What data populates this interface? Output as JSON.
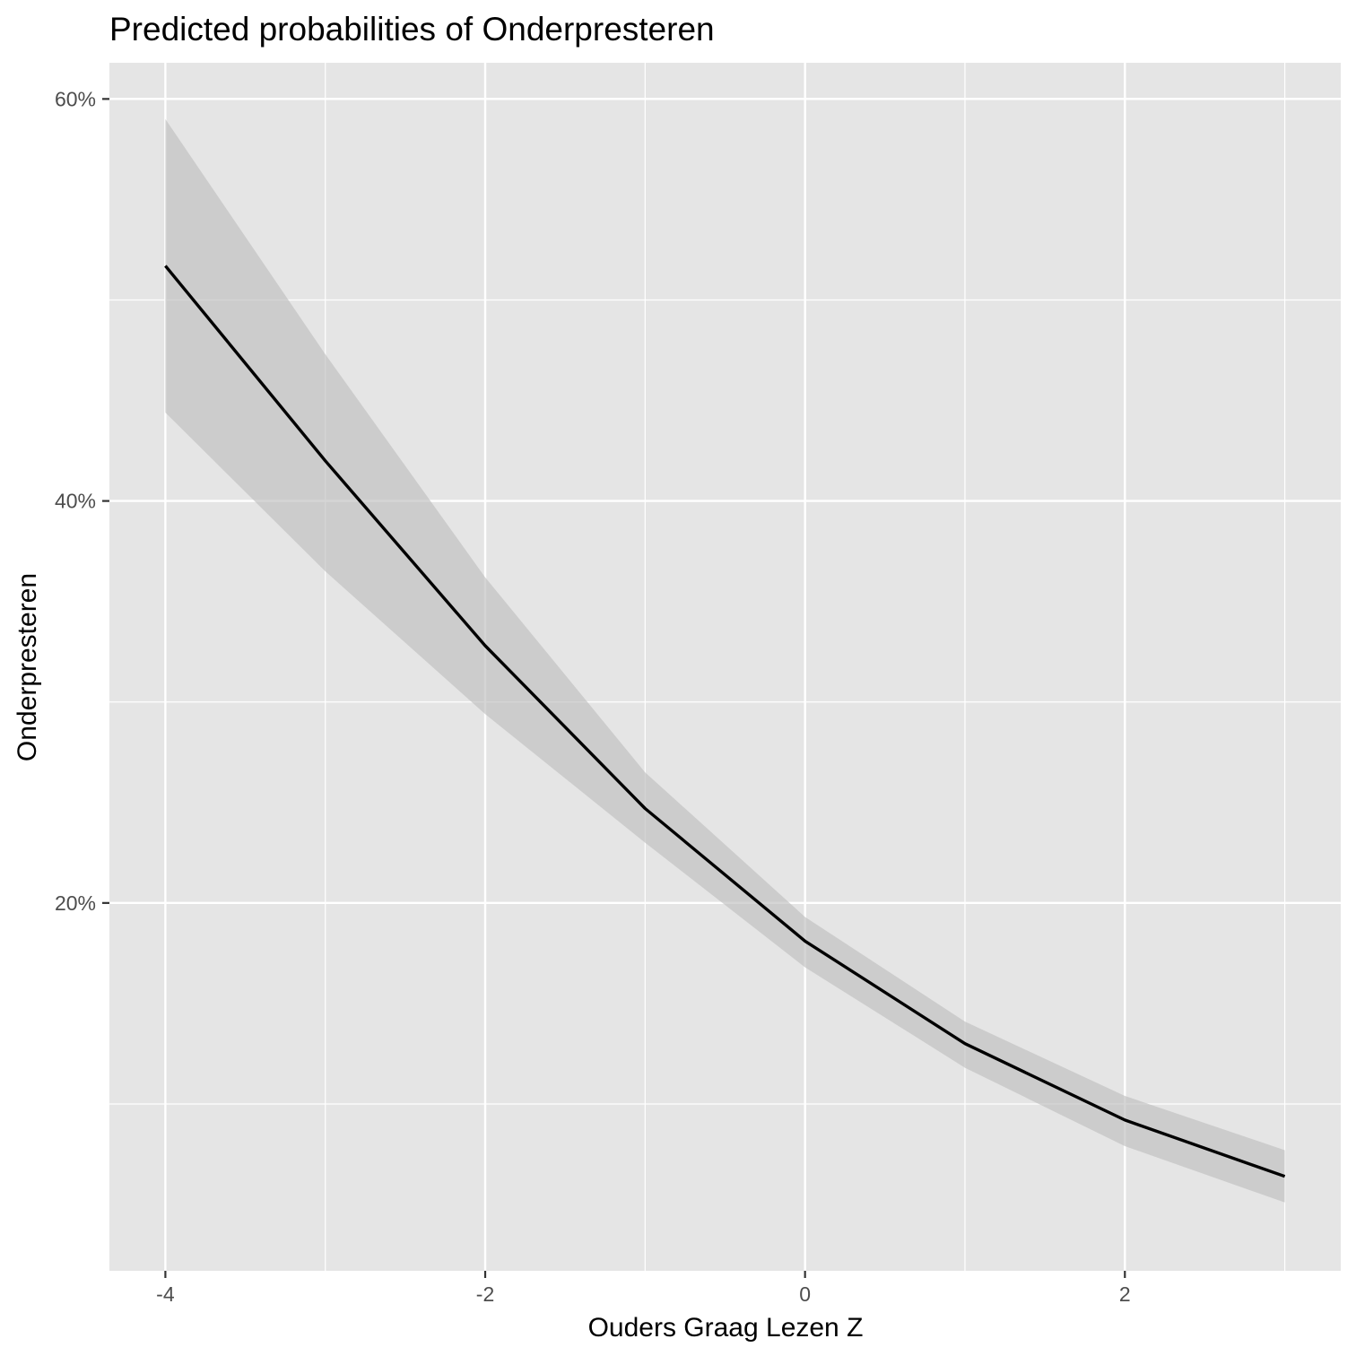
{
  "chart_data": {
    "type": "line",
    "title": "Predicted probabilities of Onderpresteren",
    "xlabel": "Ouders Graag Lezen Z",
    "ylabel": "Onderpresteren",
    "x": [
      -4,
      -3,
      -2,
      -1,
      0,
      1,
      2,
      3
    ],
    "series": [
      {
        "values": [
          0.517,
          0.42,
          0.328,
          0.247,
          0.181,
          0.13,
          0.092,
          0.064
        ],
        "ci_upper": [
          0.59,
          0.473,
          0.362,
          0.265,
          0.193,
          0.141,
          0.104,
          0.077
        ],
        "ci_lower": [
          0.444,
          0.365,
          0.294,
          0.23,
          0.168,
          0.118,
          0.079,
          0.051
        ]
      }
    ],
    "x_ticks": [
      -4,
      -2,
      0,
      2
    ],
    "x_tick_labels": [
      "-4",
      "-2",
      "0",
      "2"
    ],
    "y_ticks": [
      0.2,
      0.4,
      0.6
    ],
    "y_tick_labels": [
      "20%",
      "40%",
      "60%"
    ],
    "xlim": [
      -4.35,
      3.35
    ],
    "ylim": [
      0.017,
      0.618
    ],
    "grid": true,
    "legend": "none",
    "colors": {
      "panel_background": "#e5e5e5",
      "grid_line": "#ffffff",
      "line": "#000000",
      "ribbon": "#bebebe",
      "tick_label": "#4d4d4d"
    }
  }
}
